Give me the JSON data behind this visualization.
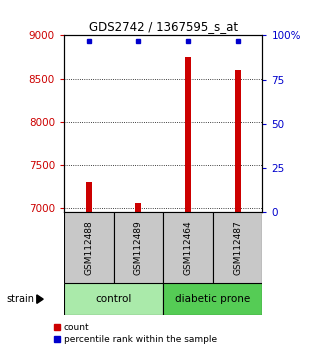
{
  "title": "GDS2742 / 1367595_s_at",
  "samples": [
    "GSM112488",
    "GSM112489",
    "GSM112464",
    "GSM112487"
  ],
  "counts": [
    7300,
    7055,
    8750,
    8600
  ],
  "percentiles": [
    97,
    97,
    97,
    97
  ],
  "ylim_left": [
    6950,
    9000
  ],
  "ylim_right": [
    0,
    100
  ],
  "yticks_left": [
    7000,
    7500,
    8000,
    8500,
    9000
  ],
  "yticks_right": [
    0,
    25,
    50,
    75,
    100
  ],
  "ytick_labels_right": [
    "0",
    "25",
    "50",
    "75",
    "100%"
  ],
  "groups": [
    {
      "label": "control",
      "samples": [
        0,
        1
      ],
      "color": "#aaeaaa"
    },
    {
      "label": "diabetic prone",
      "samples": [
        2,
        3
      ],
      "color": "#55cc55"
    }
  ],
  "bar_color": "#cc0000",
  "dot_color": "#0000cc",
  "bar_width": 0.12,
  "bg_color": "#ffffff",
  "label_area_color": "#c8c8c8",
  "left_axis_color": "#cc0000",
  "right_axis_color": "#0000cc"
}
